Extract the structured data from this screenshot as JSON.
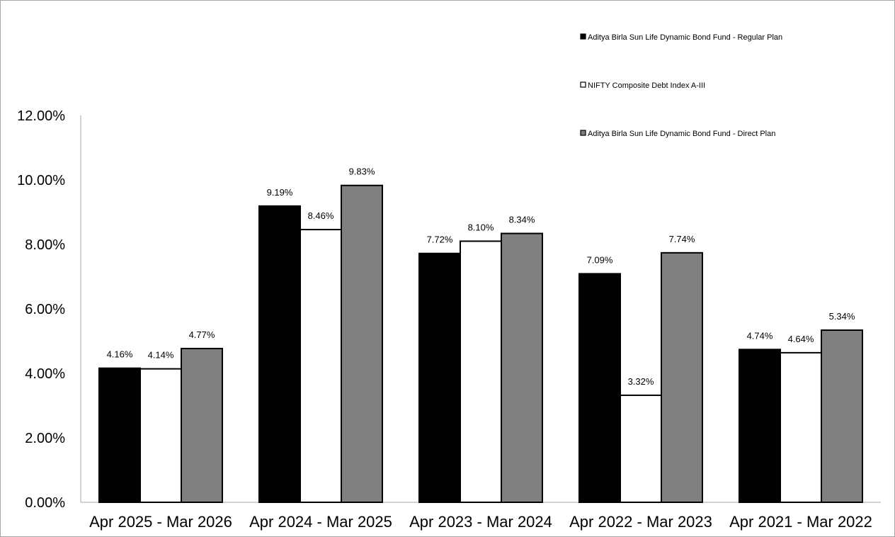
{
  "chart_data": {
    "type": "bar",
    "categories": [
      "Apr 2025 - Mar 2026",
      "Apr 2024 - Mar 2025",
      "Apr 2023 - Mar 2024",
      "Apr 2022 - Mar 2023",
      "Apr 2021 - Mar 2022"
    ],
    "series": [
      {
        "name": "Aditya Birla Sun Life Dynamic Bond Fund - Regular Plan",
        "values": [
          4.16,
          9.19,
          7.72,
          7.09,
          4.74
        ],
        "labels": [
          "4.16%",
          "9.19%",
          "7.72%",
          "7.09%",
          "4.74%"
        ],
        "color": "#000000"
      },
      {
        "name": "NIFTY Composite Debt Index A-III",
        "values": [
          4.14,
          8.46,
          8.1,
          3.32,
          4.64
        ],
        "labels": [
          "4.14%",
          "8.46%",
          "8.10%",
          "3.32%",
          "4.64%"
        ],
        "color": "#ffffff"
      },
      {
        "name": "Aditya Birla Sun Life Dynamic Bond Fund - Direct Plan",
        "values": [
          4.77,
          9.83,
          8.34,
          7.74,
          5.34
        ],
        "labels": [
          "4.77%",
          "9.83%",
          "8.34%",
          "7.74%",
          "5.34%"
        ],
        "color": "#808080"
      }
    ],
    "ylim": [
      0,
      12
    ],
    "yticks": [
      "0.00%",
      "2.00%",
      "4.00%",
      "6.00%",
      "8.00%",
      "10.00%",
      "12.00%"
    ],
    "grid": false,
    "legend_position": "top-right",
    "title": "",
    "xlabel": "",
    "ylabel": ""
  }
}
